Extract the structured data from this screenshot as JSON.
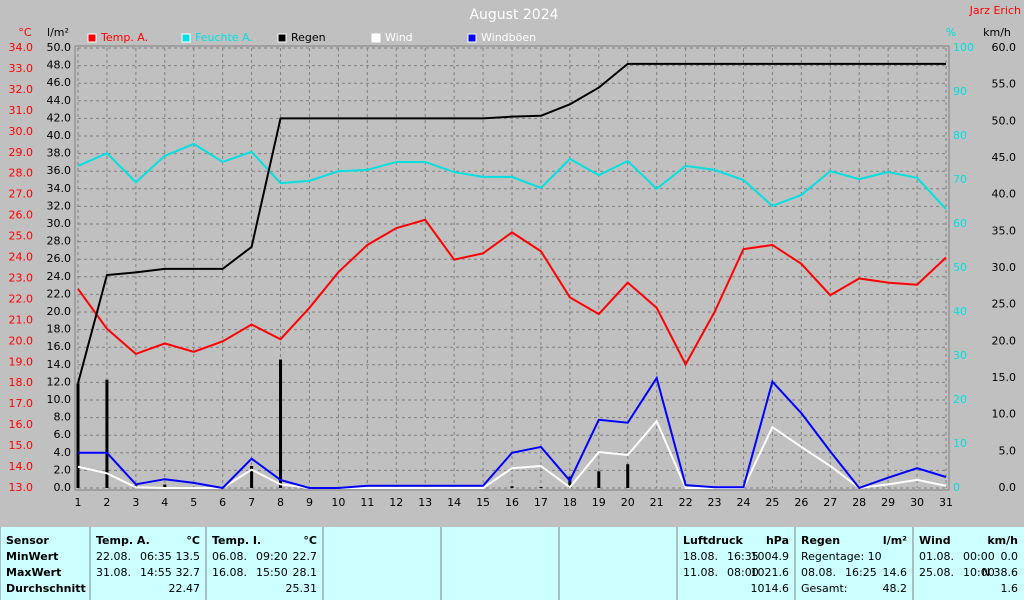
{
  "chart_data": {
    "type": "line",
    "title": "August 2024",
    "author": "Jarz Erich",
    "y_label": "°C",
    "y2_label": "l/m²",
    "y3_label": "%",
    "y4_label": "km/h",
    "categories": [
      "1",
      "2",
      "3",
      "4",
      "5",
      "6",
      "7",
      "8",
      "9",
      "10",
      "11",
      "12",
      "13",
      "14",
      "15",
      "16",
      "17",
      "18",
      "19",
      "20",
      "21",
      "22",
      "23",
      "24",
      "25",
      "26",
      "27",
      "28",
      "29",
      "30",
      "31"
    ],
    "ylim": [
      13,
      34
    ],
    "y2lim": [
      0,
      50
    ],
    "y3lim": [
      0,
      100
    ],
    "y4lim": [
      0,
      60
    ],
    "yticks": [
      {
        "value": 13,
        "label": "13.0"
      },
      {
        "value": 14,
        "label": "14.0"
      },
      {
        "value": 15,
        "label": "15.0"
      },
      {
        "value": 16,
        "label": "16.0"
      },
      {
        "value": 17,
        "label": "17.0"
      },
      {
        "value": 18,
        "label": "18.0"
      },
      {
        "value": 19,
        "label": "19.0"
      },
      {
        "value": 20,
        "label": "20.0"
      },
      {
        "value": 21,
        "label": "21.0"
      },
      {
        "value": 22,
        "label": "22.0"
      },
      {
        "value": 23,
        "label": "23.0"
      },
      {
        "value": 24,
        "label": "24.0"
      },
      {
        "value": 25,
        "label": "25.0"
      },
      {
        "value": 26,
        "label": "26.0"
      },
      {
        "value": 27,
        "label": "27.0"
      },
      {
        "value": 28,
        "label": "28.0"
      },
      {
        "value": 29,
        "label": "29.0"
      },
      {
        "value": 30,
        "label": "30.0"
      },
      {
        "value": 31,
        "label": "31.0"
      },
      {
        "value": 32,
        "label": "32.0"
      },
      {
        "value": 33,
        "label": "33.0"
      },
      {
        "value": 34,
        "label": "34.0"
      }
    ],
    "y2ticks": [
      {
        "value": 0,
        "label": "0.0"
      },
      {
        "value": 2,
        "label": "2.0"
      },
      {
        "value": 4,
        "label": "4.0"
      },
      {
        "value": 6,
        "label": "6.0"
      },
      {
        "value": 8,
        "label": "8.0"
      },
      {
        "value": 10,
        "label": "10.0"
      },
      {
        "value": 12,
        "label": "12.0"
      },
      {
        "value": 14,
        "label": "14.0"
      },
      {
        "value": 16,
        "label": "16.0"
      },
      {
        "value": 18,
        "label": "18.0"
      },
      {
        "value": 20,
        "label": "20.0"
      },
      {
        "value": 22,
        "label": "22.0"
      },
      {
        "value": 24,
        "label": "24.0"
      },
      {
        "value": 26,
        "label": "26.0"
      },
      {
        "value": 28,
        "label": "28.0"
      },
      {
        "value": 30,
        "label": "30.0"
      },
      {
        "value": 32,
        "label": "32.0"
      },
      {
        "value": 34,
        "label": "34.0"
      },
      {
        "value": 36,
        "label": "36.0"
      },
      {
        "value": 38,
        "label": "38.0"
      },
      {
        "value": 40,
        "label": "40.0"
      },
      {
        "value": 42,
        "label": "42.0"
      },
      {
        "value": 44,
        "label": "44.0"
      },
      {
        "value": 46,
        "label": "46.0"
      },
      {
        "value": 48,
        "label": "48.0"
      },
      {
        "value": 50,
        "label": "50.0"
      }
    ],
    "y3ticks": [
      0,
      10,
      20,
      30,
      40,
      50,
      60,
      70,
      80,
      90,
      100
    ],
    "y4ticks": [
      {
        "value": 0,
        "label": "0.0"
      },
      {
        "value": 5,
        "label": "5.0"
      },
      {
        "value": 10,
        "label": "10.0"
      },
      {
        "value": 15,
        "label": "15.0"
      },
      {
        "value": 20,
        "label": "20.0"
      },
      {
        "value": 25,
        "label": "25.0"
      },
      {
        "value": 30,
        "label": "30.0"
      },
      {
        "value": 35,
        "label": "35.0"
      },
      {
        "value": 40,
        "label": "40.0"
      },
      {
        "value": 45,
        "label": "45.0"
      },
      {
        "value": 50,
        "label": "50.0"
      },
      {
        "value": 55,
        "label": "55.0"
      },
      {
        "value": 60,
        "label": "60.0"
      }
    ],
    "y_color": "#ff0000",
    "y2_color": "#000000",
    "y3_color": "#00e0e0",
    "y4_color": "#000000",
    "grid": true,
    "bars": {
      "axis": "y2",
      "color": "#000000",
      "values": [
        11.9,
        12.3,
        0.3,
        0.4,
        0,
        0,
        2.5,
        14.6,
        0,
        0,
        0,
        0,
        0,
        0,
        0,
        0.2,
        0.1,
        1.3,
        1.9,
        2.7,
        0,
        0,
        0,
        0,
        0,
        0,
        0,
        0,
        0,
        0,
        0
      ]
    },
    "series": [
      {
        "name": "Temp. A.",
        "color": "#ff0000",
        "legend_text_color": "#ff0000",
        "axis": "y",
        "values": [
          22.5,
          20.6,
          19.4,
          19.9,
          19.5,
          20.0,
          20.8,
          20.1,
          21.6,
          23.3,
          24.6,
          25.4,
          25.8,
          23.9,
          24.2,
          25.2,
          24.3,
          22.1,
          21.3,
          22.8,
          21.6,
          18.9,
          21.4,
          24.4,
          24.6,
          23.7,
          22.2,
          23.0,
          22.8,
          22.7,
          24.0
        ]
      },
      {
        "name": "Feuchte A.",
        "color": "#00e0e0",
        "legend_text_color": "#00e0e0",
        "axis": "y3",
        "values": [
          73.2,
          76.1,
          69.5,
          75.5,
          78.2,
          74.1,
          76.4,
          69.3,
          69.8,
          72.0,
          72.3,
          74.1,
          74.1,
          71.8,
          70.7,
          70.7,
          68.2,
          74.8,
          71.1,
          74.3,
          68.0,
          73.2,
          72.3,
          70.0,
          64.1,
          66.6,
          72.0,
          70.2,
          71.8,
          70.5,
          63.4
        ]
      },
      {
        "name": "Regen",
        "color": "#000000",
        "legend_text_color": "#000000",
        "axis": "y2",
        "values": [
          11.9,
          24.2,
          24.5,
          24.9,
          24.9,
          24.9,
          27.4,
          42.0,
          42.0,
          42.0,
          42.0,
          42.0,
          42.0,
          42.0,
          42.0,
          42.2,
          42.3,
          43.6,
          45.5,
          48.2,
          48.2,
          48.2,
          48.2,
          48.2,
          48.2,
          48.2,
          48.2,
          48.2,
          48.2,
          48.2,
          48.2
        ]
      },
      {
        "name": "Wind",
        "color": "#ffffff",
        "legend_text_color": "#ffffff",
        "axis": "y4",
        "values": [
          2.9,
          2.0,
          0.1,
          0,
          0,
          0,
          2.5,
          0.5,
          0,
          0,
          0,
          0,
          0,
          0,
          0,
          2.7,
          3.0,
          0.1,
          4.9,
          4.5,
          9.1,
          0,
          0,
          0,
          8.3,
          5.6,
          3.0,
          0,
          0.5,
          1.1,
          0.3
        ]
      },
      {
        "name": "Windböen",
        "color": "#0000ff",
        "legend_text_color": "#ffffff",
        "axis": "y4",
        "values": [
          4.8,
          4.8,
          0.5,
          1.2,
          0.7,
          0,
          4.0,
          1.1,
          0,
          0,
          0.3,
          0.3,
          0.3,
          0.3,
          0.3,
          4.8,
          5.6,
          1.0,
          9.3,
          8.9,
          15.0,
          0.4,
          0.1,
          0.1,
          14.5,
          10.2,
          5.0,
          0,
          1.4,
          2.7,
          1.5
        ]
      }
    ]
  },
  "table": {
    "panels": [
      {
        "rows": [
          {
            "left": "Sensor"
          },
          {
            "left": "MinWert"
          },
          {
            "left": "MaxWert"
          },
          {
            "left": "Durchschnitt"
          }
        ]
      },
      {
        "rows": [
          {
            "left": "Temp. A.",
            "right": "°C"
          },
          {
            "left": "22.08.",
            "mid": "06:35",
            "right": "13.5"
          },
          {
            "left": "31.08.",
            "mid": "14:55",
            "right": "32.7"
          },
          {
            "right": "22.47"
          }
        ]
      },
      {
        "rows": [
          {
            "left": "Temp. I.",
            "right": "°C"
          },
          {
            "left": "06.08.",
            "mid": "09:20",
            "right": "22.7"
          },
          {
            "left": "16.08.",
            "mid": "15:50",
            "right": "28.1"
          },
          {
            "right": "25.31"
          }
        ]
      },
      {
        "rows": []
      },
      {
        "rows": []
      },
      {
        "rows": []
      },
      {
        "rows": [
          {
            "left": "Luftdruck",
            "right": "hPa"
          },
          {
            "left": "18.08.",
            "mid": "16:35",
            "right": "1004.9"
          },
          {
            "left": "11.08.",
            "mid": "08:00",
            "right": "1021.6"
          },
          {
            "right": "1014.6"
          }
        ]
      },
      {
        "rows": [
          {
            "left": "Regen",
            "right": "l/m²"
          },
          {
            "left": "Regentage: 10"
          },
          {
            "left": "08.08.",
            "mid": "16:25",
            "right": "14.6"
          },
          {
            "left": "Gesamt:",
            "right": "48.2"
          }
        ]
      },
      {
        "rows": [
          {
            "left": "Wind",
            "right": "km/h"
          },
          {
            "left": "01.08.",
            "mid": "00:00",
            "right": "0.0"
          },
          {
            "left": "25.08.",
            "mid": "10:00",
            "right": "N 38.6"
          },
          {
            "right": "1.6"
          }
        ]
      }
    ]
  }
}
